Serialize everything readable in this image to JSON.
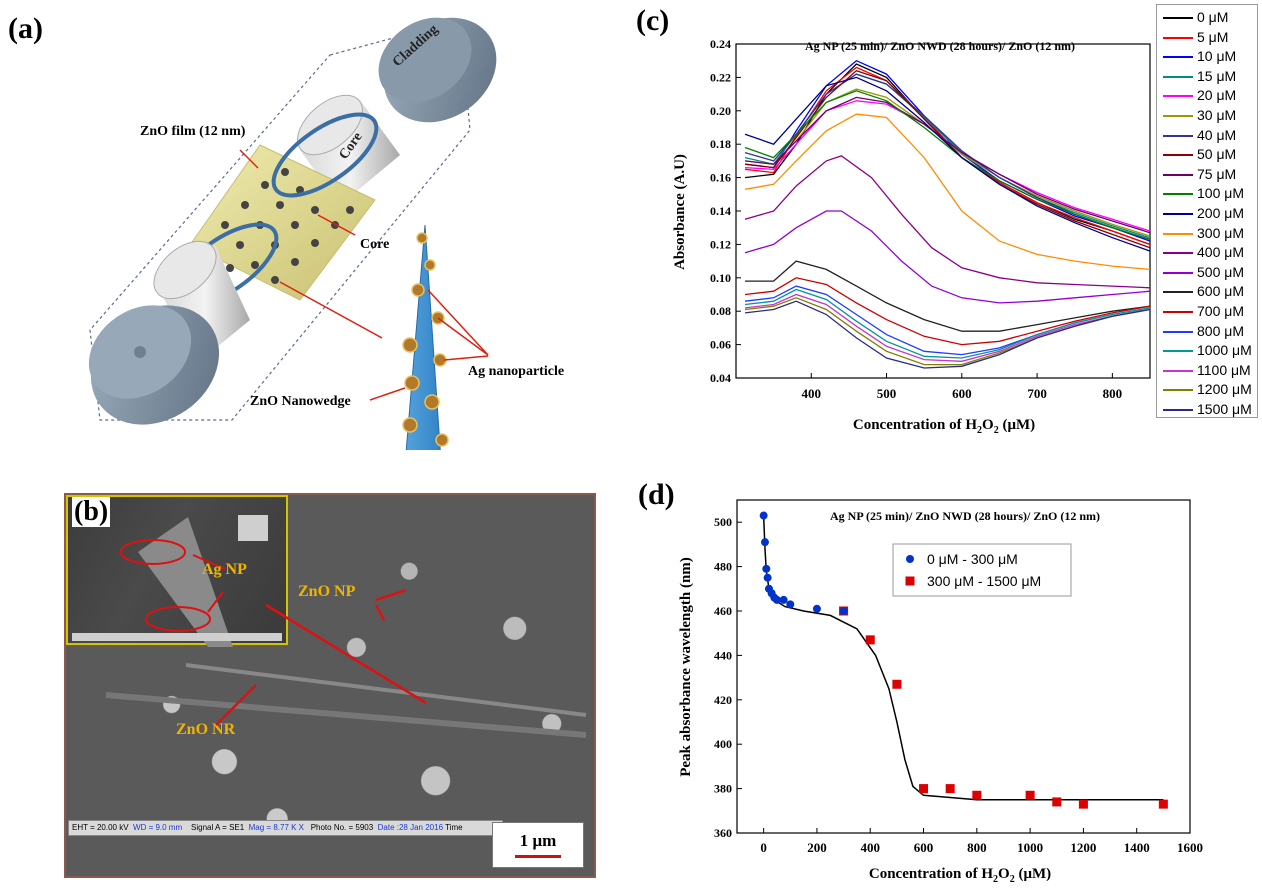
{
  "panels": {
    "a": {
      "label": "(a)",
      "labels": {
        "cladding": "Cladding",
        "core_top": "Core",
        "zno_film": "ZnO film (12 nm)",
        "core": "Core",
        "ag_nanoparticle": "Ag nanoparticle",
        "zno_nanowedge": "ZnO Nanowedge"
      }
    },
    "b": {
      "label": "(b)",
      "labels": {
        "ag_np": "Ag NP",
        "zno_np": "ZnO NP",
        "zno_nr": "ZnO NR"
      },
      "info_bar": {
        "eht": "EHT = 20.00 kV",
        "wd": "WD =  9.0 mm",
        "signal": "Signal A = SE1",
        "mag": "Mag =   8.77 K X",
        "photo": "Photo No. = 5903",
        "date": "Date :28 Jan 2016",
        "time": "Time"
      },
      "scale_bar": "1 μm"
    },
    "c": {
      "label": "(c)"
    },
    "d": {
      "label": "(d)"
    }
  },
  "colors": {
    "series": [
      "#000000",
      "#ff0000",
      "#0000ff",
      "#008b8b",
      "#ff00ff",
      "#9a9a00",
      "#333399",
      "#8b0000",
      "#6b006b",
      "#008000",
      "#00008b",
      "#ff8c00",
      "#8b008b",
      "#9400d3",
      "#222222",
      "#cc0000",
      "#1e3cff",
      "#009999",
      "#cc33cc",
      "#808000",
      "#2a2a8a"
    ],
    "marker_low": "#0033cc",
    "marker_high": "#dd0000"
  },
  "chart_data": [
    {
      "type": "line",
      "title": "Ag NP (25 min)/ ZnO NWD (28 hours)/ ZnO (12 nm)",
      "xlabel": "Concentration of H2O2 (μM)",
      "ylabel": "Absorbance (A.U)",
      "xlim": [
        300,
        850
      ],
      "ylim": [
        0.04,
        0.24
      ],
      "xticks": [
        300,
        400,
        500,
        600,
        700,
        800
      ],
      "yticks": [
        0.04,
        0.06,
        0.08,
        0.1,
        0.12,
        0.14,
        0.16,
        0.18,
        0.2,
        0.22,
        0.24
      ],
      "legend": "right-outside",
      "series": [
        {
          "name": "0 μM",
          "x": [
            312,
            350,
            380,
            420,
            460,
            500,
            550,
            600,
            650,
            700,
            750,
            800,
            850
          ],
          "y": [
            0.16,
            0.162,
            0.18,
            0.21,
            0.228,
            0.22,
            0.195,
            0.172,
            0.157,
            0.145,
            0.135,
            0.128,
            0.12
          ]
        },
        {
          "name": "5 μM",
          "x": [
            312,
            350,
            380,
            420,
            460,
            500,
            550,
            600,
            650,
            700,
            750,
            800,
            850
          ],
          "y": [
            0.165,
            0.163,
            0.185,
            0.212,
            0.226,
            0.218,
            0.196,
            0.172,
            0.157,
            0.145,
            0.136,
            0.128,
            0.12
          ]
        },
        {
          "name": "10 μM",
          "x": [
            312,
            350,
            380,
            420,
            460,
            500,
            550,
            600,
            650,
            700,
            750,
            800,
            850
          ],
          "y": [
            0.168,
            0.166,
            0.188,
            0.215,
            0.23,
            0.222,
            0.197,
            0.174,
            0.158,
            0.147,
            0.137,
            0.13,
            0.122
          ]
        },
        {
          "name": "15 μM",
          "x": [
            312,
            350,
            380,
            420,
            460,
            500,
            550,
            600,
            650,
            700,
            750,
            800,
            850
          ],
          "y": [
            0.172,
            0.168,
            0.186,
            0.21,
            0.222,
            0.216,
            0.196,
            0.175,
            0.16,
            0.148,
            0.139,
            0.131,
            0.124
          ]
        },
        {
          "name": "20 μM",
          "x": [
            312,
            350,
            380,
            420,
            460,
            500,
            550,
            600,
            650,
            700,
            750,
            800,
            850
          ],
          "y": [
            0.166,
            0.165,
            0.18,
            0.2,
            0.206,
            0.204,
            0.192,
            0.175,
            0.162,
            0.151,
            0.142,
            0.135,
            0.128
          ]
        },
        {
          "name": "30 μM",
          "x": [
            312,
            350,
            380,
            420,
            460,
            500,
            550,
            600,
            650,
            700,
            750,
            800,
            850
          ],
          "y": [
            0.17,
            0.168,
            0.182,
            0.205,
            0.213,
            0.208,
            0.192,
            0.174,
            0.16,
            0.149,
            0.14,
            0.132,
            0.125
          ]
        },
        {
          "name": "40 μM",
          "x": [
            312,
            350,
            380,
            420,
            460,
            500,
            550,
            600,
            650,
            700,
            750,
            800,
            850
          ],
          "y": [
            0.175,
            0.17,
            0.186,
            0.21,
            0.222,
            0.216,
            0.197,
            0.176,
            0.16,
            0.148,
            0.138,
            0.13,
            0.123
          ]
        },
        {
          "name": "50 μM",
          "x": [
            312,
            350,
            380,
            420,
            460,
            500,
            550,
            600,
            650,
            700,
            750,
            800,
            850
          ],
          "y": [
            0.168,
            0.166,
            0.184,
            0.208,
            0.224,
            0.218,
            0.195,
            0.172,
            0.156,
            0.144,
            0.134,
            0.126,
            0.118
          ]
        },
        {
          "name": "75 μM",
          "x": [
            312,
            350,
            380,
            420,
            460,
            500,
            550,
            600,
            650,
            700,
            750,
            800,
            850
          ],
          "y": [
            0.17,
            0.168,
            0.182,
            0.2,
            0.208,
            0.205,
            0.192,
            0.175,
            0.162,
            0.15,
            0.141,
            0.134,
            0.127
          ]
        },
        {
          "name": "100 μM",
          "x": [
            312,
            350,
            380,
            420,
            460,
            500,
            550,
            600,
            650,
            700,
            750,
            800,
            850
          ],
          "y": [
            0.178,
            0.172,
            0.186,
            0.205,
            0.212,
            0.206,
            0.19,
            0.172,
            0.158,
            0.147,
            0.138,
            0.13,
            0.123
          ]
        },
        {
          "name": "200 μM",
          "x": [
            312,
            350,
            380,
            420,
            460,
            500,
            550,
            600,
            650,
            700,
            750,
            800,
            850
          ],
          "y": [
            0.186,
            0.18,
            0.195,
            0.215,
            0.22,
            0.212,
            0.193,
            0.172,
            0.156,
            0.143,
            0.133,
            0.124,
            0.116
          ]
        },
        {
          "name": "300 μM",
          "x": [
            312,
            350,
            380,
            420,
            460,
            500,
            550,
            600,
            650,
            700,
            750,
            800,
            850
          ],
          "y": [
            0.153,
            0.156,
            0.17,
            0.188,
            0.198,
            0.196,
            0.172,
            0.14,
            0.122,
            0.114,
            0.11,
            0.107,
            0.105
          ]
        },
        {
          "name": "400 μM",
          "x": [
            312,
            350,
            380,
            420,
            440,
            480,
            520,
            560,
            600,
            650,
            700,
            750,
            800,
            850
          ],
          "y": [
            0.135,
            0.14,
            0.155,
            0.17,
            0.173,
            0.16,
            0.138,
            0.118,
            0.106,
            0.1,
            0.097,
            0.096,
            0.095,
            0.094
          ]
        },
        {
          "name": "500 μM",
          "x": [
            312,
            350,
            380,
            420,
            440,
            480,
            520,
            560,
            600,
            650,
            700,
            750,
            800,
            850
          ],
          "y": [
            0.115,
            0.12,
            0.13,
            0.14,
            0.14,
            0.128,
            0.11,
            0.095,
            0.088,
            0.085,
            0.086,
            0.088,
            0.09,
            0.092
          ]
        },
        {
          "name": "600 μM",
          "x": [
            312,
            350,
            380,
            420,
            460,
            500,
            550,
            600,
            650,
            700,
            750,
            800,
            850
          ],
          "y": [
            0.098,
            0.098,
            0.11,
            0.105,
            0.095,
            0.085,
            0.075,
            0.068,
            0.068,
            0.072,
            0.076,
            0.08,
            0.083
          ]
        },
        {
          "name": "700 μM",
          "x": [
            312,
            350,
            380,
            420,
            460,
            500,
            550,
            600,
            650,
            700,
            750,
            800,
            850
          ],
          "y": [
            0.09,
            0.092,
            0.1,
            0.096,
            0.085,
            0.075,
            0.065,
            0.06,
            0.062,
            0.068,
            0.074,
            0.079,
            0.083
          ]
        },
        {
          "name": "800 μM",
          "x": [
            312,
            350,
            380,
            420,
            460,
            500,
            550,
            600,
            650,
            700,
            750,
            800,
            850
          ],
          "y": [
            0.086,
            0.088,
            0.095,
            0.09,
            0.078,
            0.066,
            0.056,
            0.054,
            0.058,
            0.066,
            0.073,
            0.078,
            0.082
          ]
        },
        {
          "name": "1000 μM",
          "x": [
            312,
            350,
            380,
            420,
            460,
            500,
            550,
            600,
            650,
            700,
            750,
            800,
            850
          ],
          "y": [
            0.084,
            0.086,
            0.093,
            0.087,
            0.074,
            0.062,
            0.053,
            0.052,
            0.057,
            0.066,
            0.073,
            0.078,
            0.082
          ]
        },
        {
          "name": "1100 μM",
          "x": [
            312,
            350,
            380,
            420,
            460,
            500,
            550,
            600,
            650,
            700,
            750,
            800,
            850
          ],
          "y": [
            0.082,
            0.084,
            0.09,
            0.084,
            0.071,
            0.059,
            0.051,
            0.05,
            0.056,
            0.065,
            0.072,
            0.077,
            0.081
          ]
        },
        {
          "name": "1200 μM",
          "x": [
            312,
            350,
            380,
            420,
            460,
            500,
            550,
            600,
            650,
            700,
            750,
            800,
            850
          ],
          "y": [
            0.081,
            0.083,
            0.088,
            0.081,
            0.068,
            0.056,
            0.048,
            0.048,
            0.055,
            0.064,
            0.071,
            0.077,
            0.081
          ]
        },
        {
          "name": "1500 μM",
          "x": [
            312,
            350,
            380,
            420,
            460,
            500,
            550,
            600,
            650,
            700,
            750,
            800,
            850
          ],
          "y": [
            0.079,
            0.081,
            0.086,
            0.078,
            0.064,
            0.052,
            0.046,
            0.047,
            0.054,
            0.064,
            0.071,
            0.077,
            0.081
          ]
        }
      ]
    },
    {
      "type": "scatter",
      "title": "Ag NP (25 min)/ ZnO NWD (28 hours)/ ZnO (12 nm)",
      "xlabel": "Concentration of H2O2 (μM)",
      "ylabel": "Peak absorbance wavelength (nm)",
      "xlim": [
        -100,
        1600
      ],
      "ylim": [
        360,
        510
      ],
      "xticks": [
        0,
        200,
        400,
        600,
        800,
        1000,
        1200,
        1400,
        1600
      ],
      "yticks": [
        360,
        380,
        400,
        420,
        440,
        460,
        480,
        500
      ],
      "legend": "top-center",
      "series": [
        {
          "name": "0 μM - 300 μM",
          "marker": "circle",
          "x": [
            0,
            5,
            10,
            15,
            20,
            30,
            40,
            50,
            75,
            100,
            200,
            300
          ],
          "y": [
            503,
            491,
            479,
            475,
            470,
            468,
            466,
            465,
            465,
            463,
            461,
            460
          ]
        },
        {
          "name": "300 μM - 1500 μM",
          "marker": "square",
          "x": [
            300,
            400,
            500,
            600,
            700,
            800,
            1000,
            1100,
            1200,
            1500
          ],
          "y": [
            460,
            447,
            427,
            380,
            380,
            377,
            377,
            374,
            373,
            373
          ]
        }
      ],
      "fit_curve": {
        "x": [
          0,
          5,
          10,
          20,
          40,
          80,
          150,
          250,
          350,
          420,
          470,
          500,
          530,
          560,
          600,
          700,
          800,
          1000,
          1200,
          1500
        ],
        "y": [
          503,
          488,
          478,
          470,
          465,
          462,
          460,
          458,
          452,
          440,
          425,
          410,
          393,
          381,
          377,
          376,
          375,
          375,
          375,
          375
        ]
      }
    }
  ]
}
